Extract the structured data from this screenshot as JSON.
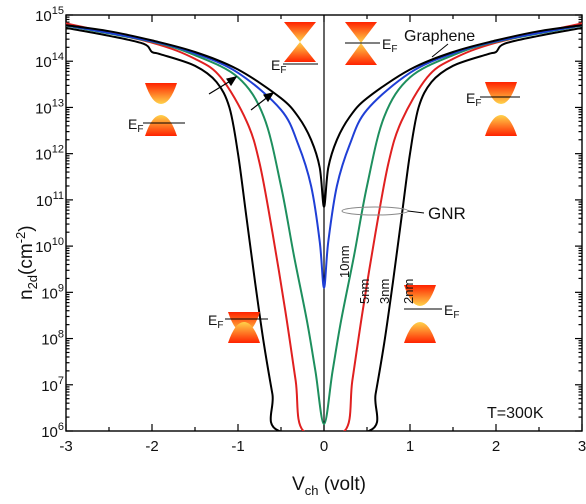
{
  "chart_data": {
    "type": "line",
    "x_ticks": [
      "-3",
      "-2",
      "-1",
      "0",
      "1",
      "2",
      "3"
    ],
    "y_ticks": [
      {
        "base": "10",
        "exp": "6"
      },
      {
        "base": "10",
        "exp": "7"
      },
      {
        "base": "10",
        "exp": "8"
      },
      {
        "base": "10",
        "exp": "9"
      },
      {
        "base": "10",
        "exp": "10"
      },
      {
        "base": "10",
        "exp": "11"
      },
      {
        "base": "10",
        "exp": "12"
      },
      {
        "base": "10",
        "exp": "13"
      },
      {
        "base": "10",
        "exp": "14"
      },
      {
        "base": "10",
        "exp": "15"
      }
    ],
    "xlabel": {
      "main": "V",
      "sub": "ch",
      "rest": " (volt)"
    },
    "ylabel": {
      "main": "n",
      "sub": "2d",
      "paren_open": "(cm",
      "sup": "-2",
      "paren_close": ")"
    },
    "xlim": [
      -3,
      3
    ],
    "ylim_log10": [
      6,
      15
    ],
    "y_scale": "log",
    "series": [
      {
        "name": "Graphene",
        "color": "#000000",
        "x": [
          -3,
          -2.5,
          -2,
          -1.5,
          -1,
          -0.5,
          -0.3,
          -0.15,
          -0.05,
          0,
          0.05,
          0.15,
          0.3,
          0.5,
          1,
          1.5,
          2,
          2.5,
          3
        ],
        "log10_y": [
          14.78,
          14.65,
          14.45,
          14.2,
          13.82,
          13.2,
          12.8,
          12.3,
          11.7,
          10.85,
          11.7,
          12.3,
          12.8,
          13.2,
          13.82,
          14.2,
          14.45,
          14.65,
          14.78
        ]
      },
      {
        "name": "10nm",
        "color": "#1f3fd6",
        "x": [
          -3,
          -2,
          -1.5,
          -1,
          -0.5,
          -0.3,
          -0.15,
          -0.05,
          0,
          0.05,
          0.15,
          0.3,
          0.5,
          1,
          1.5,
          2,
          3
        ],
        "log10_y": [
          14.78,
          14.43,
          14.17,
          13.75,
          12.95,
          12.2,
          11.3,
          10.1,
          9.1,
          10.1,
          11.3,
          12.2,
          12.95,
          13.75,
          14.17,
          14.43,
          14.78
        ]
      },
      {
        "name": "5nm",
        "color": "#1e8f5e",
        "x": [
          -3,
          -2,
          -1.5,
          -1,
          -0.7,
          -0.5,
          -0.35,
          -0.2,
          -0.1,
          0,
          0.1,
          0.2,
          0.35,
          0.5,
          0.7,
          1,
          1.5,
          2,
          3
        ],
        "log10_y": [
          14.77,
          14.42,
          14.13,
          13.65,
          12.8,
          11.3,
          9.8,
          8.4,
          7.3,
          6.15,
          7.3,
          8.4,
          9.8,
          11.3,
          12.8,
          13.65,
          14.13,
          14.42,
          14.77
        ]
      },
      {
        "name": "3nm",
        "color": "#e02020",
        "x": [
          -3,
          -2,
          -1.5,
          -1.2,
          -0.9,
          -0.75,
          -0.6,
          -0.45,
          -0.33,
          -0.24,
          0.24,
          0.33,
          0.45,
          0.6,
          0.75,
          0.9,
          1.2,
          1.5,
          2,
          3
        ],
        "log10_y": [
          14.82,
          14.4,
          14.05,
          13.65,
          12.7,
          11.8,
          10.3,
          8.6,
          7.1,
          6.0,
          6.0,
          7.1,
          8.6,
          10.3,
          11.8,
          12.7,
          13.65,
          14.05,
          14.4,
          14.82
        ]
      },
      {
        "name": "2nm",
        "color": "#000000",
        "x": [
          -3,
          -2.5,
          -2.1,
          -2,
          -1.9,
          -1.5,
          -1.25,
          -1.1,
          -1.0,
          -0.9,
          -0.8,
          -0.7,
          -0.6,
          -0.52,
          0.52,
          0.6,
          0.7,
          0.8,
          0.9,
          1.0,
          1.1,
          1.25,
          1.5,
          1.9,
          2,
          2.1,
          2.5,
          3
        ],
        "log10_y": [
          14.72,
          14.55,
          14.38,
          14.2,
          14.15,
          13.9,
          13.55,
          13.0,
          12.0,
          10.6,
          9.2,
          7.9,
          6.8,
          6.0,
          6.0,
          6.8,
          7.9,
          9.2,
          10.6,
          12.0,
          13.0,
          13.55,
          13.9,
          14.15,
          14.2,
          14.38,
          14.55,
          14.72
        ]
      }
    ],
    "annotations": {
      "graphene_label": "Graphene",
      "gnr_label": "GNR",
      "temperature_label": "T=300K",
      "width_labels": [
        "10nm",
        "5nm",
        "3nm",
        "2nm"
      ],
      "fermi_label": {
        "main": "E",
        "sub": "F"
      }
    },
    "grid": false,
    "colors": {
      "cone_top": "#ff2a00",
      "cone_bottom": "#ffd24a",
      "axis": "#000000"
    }
  }
}
